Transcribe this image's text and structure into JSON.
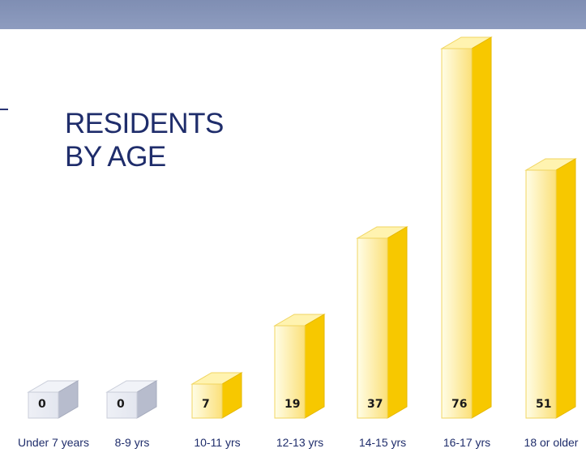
{
  "chart_data": {
    "type": "bar",
    "title": [
      "RESIDENTS",
      "BY AGE"
    ],
    "categories": [
      "Under 7 years",
      "8-9 yrs",
      "10-11 yrs",
      "12-13 yrs",
      "14-15 yrs",
      "16-17 yrs",
      "18 or older"
    ],
    "values": [
      0,
      0,
      7,
      19,
      37,
      76,
      51
    ],
    "data_labels": [
      "0",
      "0",
      "7",
      "19",
      "37",
      "76",
      "51"
    ],
    "style": "3d-bars",
    "colors": {
      "bar_front_light": "#fffde6",
      "bar_front_dark": "#fbe07a",
      "bar_side": "#f7c800",
      "bar_top": "#fff3b0",
      "zero_front": "#e3e6ef",
      "zero_side": "#b7bccd",
      "zero_top": "#f1f3f8",
      "title": "#1f2d6b",
      "band": "#8a98bd"
    }
  }
}
